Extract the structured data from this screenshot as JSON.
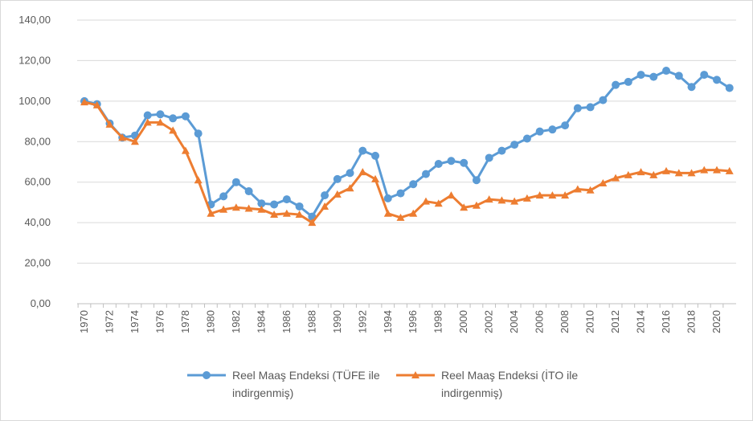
{
  "chart_data": {
    "type": "line",
    "categories": [
      "1970",
      null,
      "1972",
      null,
      "1974",
      null,
      "1976",
      null,
      "1978",
      null,
      "1980",
      null,
      "1982",
      null,
      "1984",
      null,
      "1986",
      null,
      "1988",
      null,
      "1990",
      null,
      "1992",
      null,
      "1994",
      null,
      "1996",
      null,
      "1998",
      null,
      "2000",
      null,
      "2002",
      null,
      "2004",
      null,
      "2006",
      null,
      "2008",
      null,
      "2010",
      null,
      "2012",
      null,
      "2014",
      null,
      "2016",
      null,
      "2018",
      null,
      "2020",
      null
    ],
    "series": [
      {
        "name": "Reel Maaş Endeksi (TÜFE ile indirgenmiş)",
        "color": "#5b9bd5",
        "marker": "circle",
        "values": [
          100,
          98.5,
          89,
          82,
          83,
          93,
          93.5,
          91.5,
          92.5,
          84,
          49,
          53,
          60,
          55.5,
          49.5,
          49,
          51.5,
          48,
          43,
          53.5,
          61.5,
          64.5,
          75.5,
          73,
          52,
          54.5,
          59,
          64,
          69,
          70.5,
          69.5,
          61,
          72,
          75.5,
          78.5,
          81.5,
          85,
          86,
          88,
          96.5,
          97,
          100.5,
          108,
          109.5,
          113,
          112,
          115,
          112.5,
          107,
          113,
          110.5,
          106.5
        ]
      },
      {
        "name": "Reel Maaş Endeksi (İTO ile indirgenmiş)",
        "color": "#ed7d31",
        "marker": "triangle",
        "values": [
          99.5,
          98,
          88.5,
          82,
          80,
          89.5,
          89.5,
          85.5,
          75.5,
          61,
          44.5,
          46.5,
          47.5,
          47,
          46.5,
          44,
          44.5,
          44,
          40,
          48,
          54,
          57,
          65,
          61.5,
          44.5,
          42.5,
          44.5,
          50.5,
          49.5,
          53.5,
          47.5,
          48.5,
          51.5,
          51,
          50.5,
          52,
          53.5,
          53.5,
          53.5,
          56.5,
          56,
          59.5,
          62,
          63.5,
          65,
          63.5,
          65.5,
          64.5,
          64.5,
          66,
          66,
          65.5
        ]
      }
    ],
    "ylim": [
      0,
      140
    ],
    "yticks": [
      {
        "value": 0,
        "label": "0,00"
      },
      {
        "value": 20,
        "label": "20,00"
      },
      {
        "value": 40,
        "label": "40,00"
      },
      {
        "value": 60,
        "label": "60,00"
      },
      {
        "value": 80,
        "label": "80,00"
      },
      {
        "value": 100,
        "label": "100,00"
      },
      {
        "value": 120,
        "label": "120,00"
      },
      {
        "value": 140,
        "label": "140,00"
      }
    ],
    "grid": true,
    "legend": "bottom"
  }
}
